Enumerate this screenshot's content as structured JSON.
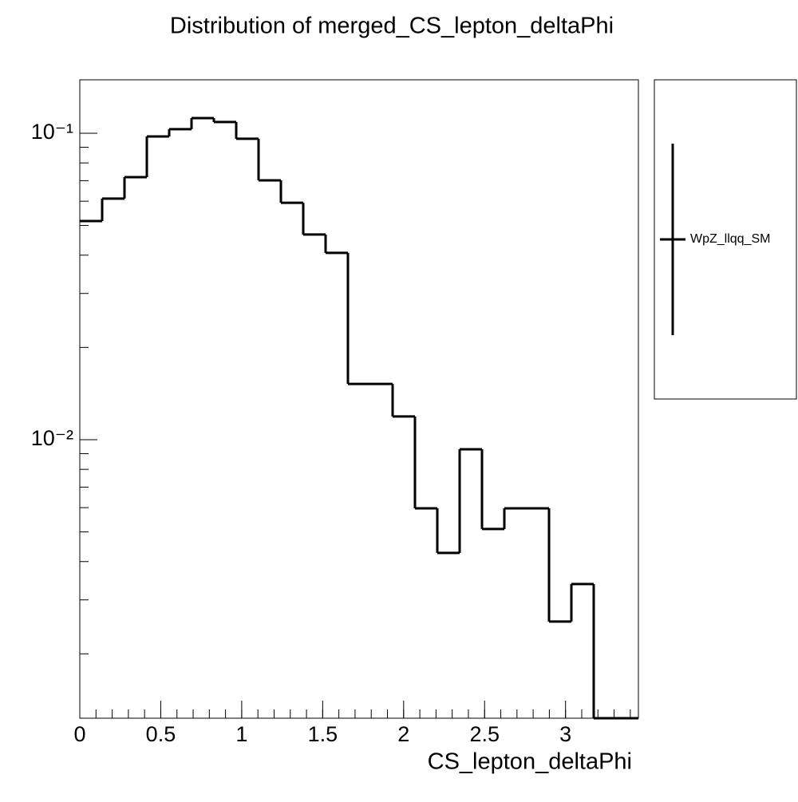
{
  "chart_data": {
    "type": "histogram",
    "title": "Distribution of merged_CS_lepton_deltaPhi",
    "x_label": "CS_lepton_deltaPhi",
    "bins": [
      0,
      0.138,
      0.276,
      0.414,
      0.552,
      0.69,
      0.828,
      0.966,
      1.104,
      1.242,
      1.38,
      1.518,
      1.656,
      1.794,
      1.932,
      2.07,
      2.208,
      2.346,
      2.484,
      2.622,
      2.76,
      2.898,
      3.036,
      3.174,
      3.312,
      3.45
    ],
    "series": [
      {
        "name": "WpZ_llqq_SM",
        "color": "#000000",
        "values": [
          0.0517,
          0.0612,
          0.0719,
          0.0976,
          0.1031,
          0.112,
          0.1088,
          0.0959,
          0.0702,
          0.0593,
          0.0467,
          0.0407,
          0.0152,
          0.0152,
          0.0119,
          0.00597,
          0.00427,
          0.0093,
          0.00511,
          0.00597,
          0.00597,
          0.00255,
          0.00338,
          0,
          0
        ]
      }
    ],
    "xlim": [
      0,
      3.45
    ],
    "xticks": [
      0,
      0.5,
      1,
      1.5,
      2,
      2.5,
      3
    ],
    "ylim": [
      0.001233,
      0.1494
    ],
    "yticks": [
      {
        "value": 0.01,
        "label": "10⁻²"
      },
      {
        "value": 0.1,
        "label": "10⁻¹"
      }
    ],
    "log_y": true,
    "grid": false,
    "legend": "right"
  }
}
